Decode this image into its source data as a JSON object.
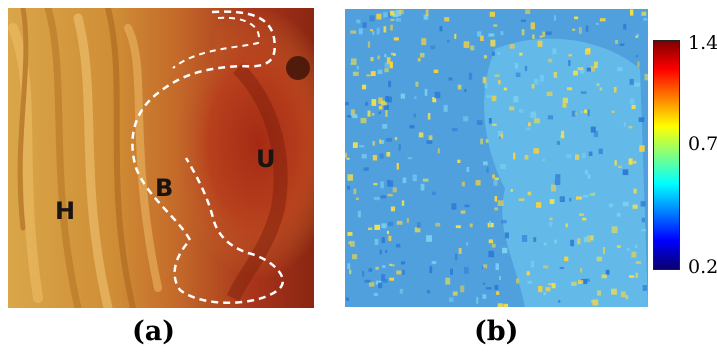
{
  "panel_a": {
    "caption": "(a)",
    "labels": {
      "h": "H",
      "b": "B",
      "u": "U"
    }
  },
  "panel_b": {
    "caption": "(b)",
    "colorbar": {
      "max_label": "1.4",
      "mid_label": "0.7",
      "min_label": "0.2",
      "colors": [
        "#08006e",
        "#0000ff",
        "#0080ff",
        "#00ffff",
        "#80ff80",
        "#ffff00",
        "#ff8000",
        "#ff0000",
        "#800000"
      ]
    },
    "base_color": "#4fa0dd",
    "speckle_colors": [
      "#ffd23a",
      "#f4e04a",
      "#2d7bd6",
      "#7cd0f0"
    ]
  },
  "colors": {
    "tissue_yellow": "#d79a3c",
    "tissue_orange": "#c4662a",
    "tissue_red": "#9e2e16",
    "boundary": "#ffffff"
  }
}
